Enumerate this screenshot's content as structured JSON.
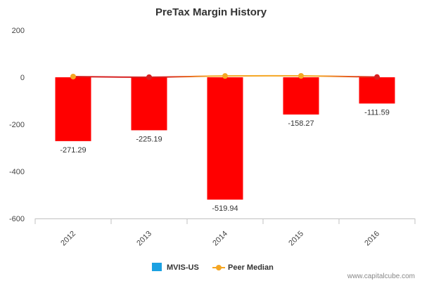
{
  "chart_data": {
    "type": "bar",
    "title": "PreTax Margin History",
    "categories": [
      "2012",
      "2013",
      "2014",
      "2015",
      "2016"
    ],
    "series": [
      {
        "name": "MVIS-US",
        "type": "bar",
        "values": [
          -271.29,
          -225.19,
          -519.94,
          -158.27,
          -111.59
        ]
      },
      {
        "name": "Peer Median",
        "type": "line",
        "values": [
          3.0,
          0.5,
          5.5,
          6.0,
          1.0
        ]
      }
    ],
    "data_labels": [
      "-271.29",
      "-225.19",
      "-519.94",
      "-158.27",
      "-111.59"
    ],
    "yticks": [
      "200",
      "0",
      "-200",
      "-400",
      "-600"
    ],
    "ylim": [
      -600,
      200
    ],
    "xlabel": "",
    "ylabel": "",
    "grid": false,
    "legend_position": "bottom-center",
    "colors": {
      "bar": "#ff0000",
      "legend_bar_swatch": "#1ba1e2",
      "peer_line": "#f5a623",
      "peer_line_negative": "#d62020",
      "peer_marker": "#f5a623",
      "peer_marker_negative": "#d62020"
    }
  },
  "credit": "www.capitalcube.com"
}
